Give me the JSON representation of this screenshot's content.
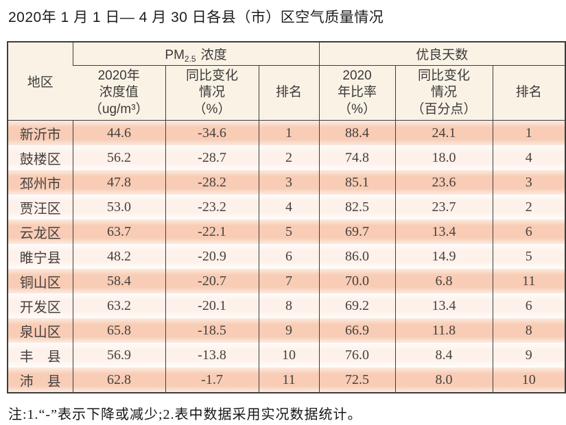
{
  "page": {
    "title": "2020年 1 月 1 日— 4 月 30 日各县（市）区空气质量情况",
    "note": "注:1.“-”表示下降或减少;2.表中数据采用实况数据统计。"
  },
  "table": {
    "region_header": "地区",
    "group_headers": {
      "pm": {
        "prefix": "PM",
        "sub": "2.5",
        "suffix": "浓度"
      },
      "days": "优良天数"
    },
    "subheaders": {
      "pm_value": "2020年\n浓度值\n（ug/m³）",
      "pm_change": "同比变化\n情况\n（%）",
      "pm_rank": "排名",
      "days_rate": "2020\n年比率\n（%）",
      "days_change": "同比变化\n情况\n（百分点）",
      "days_rank": "排名"
    },
    "rows": [
      {
        "region": "新沂市",
        "pm_value": "44.6",
        "pm_change": "-34.6",
        "pm_rank": "1",
        "days_rate": "88.4",
        "days_change": "24.1",
        "days_rank": "1"
      },
      {
        "region": "鼓楼区",
        "pm_value": "56.2",
        "pm_change": "-28.7",
        "pm_rank": "2",
        "days_rate": "74.8",
        "days_change": "18.0",
        "days_rank": "4"
      },
      {
        "region": "邳州市",
        "pm_value": "47.8",
        "pm_change": "-28.2",
        "pm_rank": "3",
        "days_rate": "85.1",
        "days_change": "23.6",
        "days_rank": "3"
      },
      {
        "region": "贾汪区",
        "pm_value": "53.0",
        "pm_change": "-23.2",
        "pm_rank": "4",
        "days_rate": "82.5",
        "days_change": "23.7",
        "days_rank": "2"
      },
      {
        "region": "云龙区",
        "pm_value": "63.7",
        "pm_change": "-22.1",
        "pm_rank": "5",
        "days_rate": "69.7",
        "days_change": "13.4",
        "days_rank": "6"
      },
      {
        "region": "睢宁县",
        "pm_value": "48.2",
        "pm_change": "-20.9",
        "pm_rank": "6",
        "days_rate": "86.0",
        "days_change": "14.9",
        "days_rank": "5"
      },
      {
        "region": "铜山区",
        "pm_value": "58.4",
        "pm_change": "-20.7",
        "pm_rank": "7",
        "days_rate": "70.0",
        "days_change": "6.8",
        "days_rank": "11"
      },
      {
        "region": "开发区",
        "pm_value": "63.2",
        "pm_change": "-20.1",
        "pm_rank": "8",
        "days_rate": "69.2",
        "days_change": "13.4",
        "days_rank": "6"
      },
      {
        "region": "泉山区",
        "pm_value": "65.8",
        "pm_change": "-18.5",
        "pm_rank": "9",
        "days_rate": "66.9",
        "days_change": "11.8",
        "days_rank": "8"
      },
      {
        "region": "丰　县",
        "pm_value": "56.9",
        "pm_change": "-13.8",
        "pm_rank": "10",
        "days_rate": "76.0",
        "days_change": "8.4",
        "days_rank": "9"
      },
      {
        "region": "沛　县",
        "pm_value": "62.8",
        "pm_change": "-1.7",
        "pm_rank": "11",
        "days_rate": "72.5",
        "days_change": "8.0",
        "days_rank": "10"
      }
    ]
  },
  "colors": {
    "header_bg": "#faf2e5",
    "row_salmon": "#f8ccb5",
    "row_pale": "#fdf1ea",
    "border": "#3c3c3c",
    "text": "#454140"
  }
}
